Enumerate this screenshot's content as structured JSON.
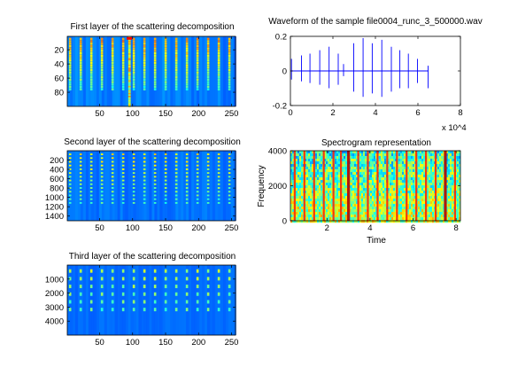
{
  "chart_data": [
    {
      "id": "layer1",
      "type": "heatmap",
      "title": "First layer of the scattering decomposition",
      "xlim": [
        1,
        256
      ],
      "ylim": [
        1,
        100
      ],
      "y_reversed": true,
      "x_ticks": [
        50,
        100,
        150,
        200,
        250
      ],
      "y_ticks": [
        20,
        40,
        60,
        80
      ],
      "colormap": "jet",
      "pattern": {
        "n_onsets": 16,
        "first_onset": 5,
        "onset_step": 16.1,
        "strong_col": 95,
        "intensity": "high"
      }
    },
    {
      "id": "waveform",
      "type": "line",
      "title": "Waveform of the sample file0004_runc_3_500000.wav",
      "xlim": [
        0,
        80000
      ],
      "ylim": [
        -0.2,
        0.2
      ],
      "x_ticks": [
        0,
        2,
        4,
        6,
        8
      ],
      "x_tick_multiplier": "x 10^4",
      "y_ticks": [
        -0.2,
        0,
        0.2
      ],
      "y_tick_labels": [
        "-0.2",
        "0",
        "0.2"
      ],
      "signal_end": 65000,
      "spikes": [
        {
          "x": 500,
          "pos": 0.07,
          "neg": -0.05
        },
        {
          "x": 5200,
          "pos": 0.09,
          "neg": -0.06
        },
        {
          "x": 9200,
          "pos": 0.1,
          "neg": -0.07
        },
        {
          "x": 13800,
          "pos": 0.12,
          "neg": -0.08
        },
        {
          "x": 18200,
          "pos": 0.14,
          "neg": -0.1
        },
        {
          "x": 22500,
          "pos": 0.1,
          "neg": -0.08
        },
        {
          "x": 25000,
          "pos": 0.04,
          "neg": -0.03
        },
        {
          "x": 29800,
          "pos": 0.16,
          "neg": -0.12
        },
        {
          "x": 34200,
          "pos": 0.19,
          "neg": -0.15
        },
        {
          "x": 38500,
          "pos": 0.16,
          "neg": -0.13
        },
        {
          "x": 43000,
          "pos": 0.18,
          "neg": -0.15
        },
        {
          "x": 47500,
          "pos": 0.14,
          "neg": -0.12
        },
        {
          "x": 51500,
          "pos": 0.12,
          "neg": -0.1
        },
        {
          "x": 55500,
          "pos": 0.1,
          "neg": -0.1
        },
        {
          "x": 59800,
          "pos": 0.07,
          "neg": -0.07
        },
        {
          "x": 64800,
          "pos": 0.03,
          "neg": -0.1
        }
      ]
    },
    {
      "id": "layer2",
      "type": "heatmap",
      "title": "Second layer of the scattering decomposition",
      "xlim": [
        1,
        256
      ],
      "ylim": [
        1,
        1500
      ],
      "y_reversed": true,
      "x_ticks": [
        50,
        100,
        150,
        200,
        250
      ],
      "y_ticks": [
        200,
        400,
        600,
        800,
        1000,
        1200,
        1400
      ],
      "colormap": "jet",
      "pattern": {
        "n_onsets": 16,
        "first_onset": 5,
        "onset_step": 16.1,
        "band_count": 14,
        "intensity": "medium"
      }
    },
    {
      "id": "spectrogram",
      "type": "heatmap",
      "title": "Spectrogram representation",
      "xlabel": "Time",
      "ylabel": "Frequency",
      "xlim": [
        0.3,
        8.2
      ],
      "ylim": [
        0,
        4000
      ],
      "y_reversed": false,
      "x_ticks": [
        2,
        4,
        6,
        8
      ],
      "y_ticks": [
        0,
        2000,
        4000
      ],
      "colormap": "jet",
      "onset_times": [
        0.5,
        0.95,
        1.4,
        1.85,
        2.3,
        2.65,
        3.0,
        3.45,
        3.9,
        4.35,
        4.8,
        5.25,
        5.7,
        6.15,
        6.6,
        7.05,
        7.5,
        7.95
      ],
      "strong_onsets": [
        3.0,
        7.0,
        7.5
      ]
    },
    {
      "id": "layer3",
      "type": "heatmap",
      "title": "Third layer of the scattering decomposition",
      "xlim": [
        1,
        256
      ],
      "ylim": [
        1,
        5000
      ],
      "y_reversed": true,
      "x_ticks": [
        50,
        100,
        150,
        200,
        250
      ],
      "y_ticks": [
        1000,
        2000,
        3000,
        4000
      ],
      "colormap": "jet",
      "pattern": {
        "n_onsets": 16,
        "first_onset": 5,
        "onset_step": 16.1,
        "band_count": 6,
        "intensity": "low"
      }
    }
  ]
}
